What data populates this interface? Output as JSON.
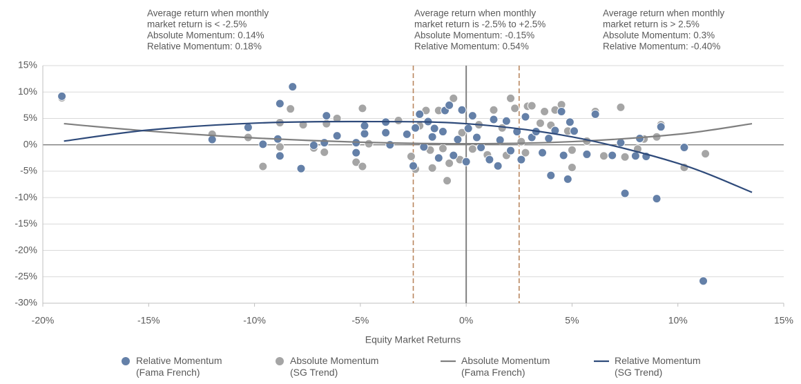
{
  "chart_data": {
    "type": "scatter",
    "xlabel": "Equity Market Returns",
    "xlim": [
      -20,
      15
    ],
    "ylim": [
      -30,
      15
    ],
    "xticks": [
      {
        "value": -20,
        "label": "-20%"
      },
      {
        "value": -15,
        "label": "-15%"
      },
      {
        "value": -10,
        "label": "-10%"
      },
      {
        "value": -5,
        "label": "-5%"
      },
      {
        "value": 0,
        "label": "0%"
      },
      {
        "value": 5,
        "label": "5%"
      },
      {
        "value": 10,
        "label": "10%"
      },
      {
        "value": 15,
        "label": "15%"
      }
    ],
    "yticks": [
      {
        "value": 15,
        "label": "15%"
      },
      {
        "value": 10,
        "label": "10%"
      },
      {
        "value": 5,
        "label": "5%"
      },
      {
        "value": 0,
        "label": "0%"
      },
      {
        "value": -5,
        "label": "-5%"
      },
      {
        "value": -10,
        "label": "-10%"
      },
      {
        "value": -15,
        "label": "-15%"
      },
      {
        "value": -20,
        "label": "-20%"
      },
      {
        "value": -25,
        "label": "-25%"
      },
      {
        "value": -30,
        "label": "-30%"
      }
    ],
    "grid": true,
    "reference_lines": [
      {
        "value": -2.5,
        "style": "dashed",
        "color": "#b8865e"
      },
      {
        "value": 0,
        "style": "solid",
        "color": "#808080"
      },
      {
        "value": 2.5,
        "style": "dashed",
        "color": "#b8865e"
      }
    ],
    "annotations": [
      [
        "Average return when monthly",
        "market return is < -2.5%",
        "Absolute Momentum: 0.14%",
        "Relative Momentum:   0.18%"
      ],
      [
        "Average return when monthly",
        "market return is -2.5% to +2.5%",
        "Absolute Momentum: -0.15%",
        "Relative Momentum:   0.54%"
      ],
      [
        "Average return when monthly",
        "market return is > 2.5%",
        "Absolute Momentum: 0.3%",
        "Relative Momentum:   -0.40%"
      ]
    ],
    "series": [
      {
        "name": "Relative Momentum (Fama French)",
        "kind": "scatter",
        "color": "#6480a8",
        "x": [
          -19.1,
          -12,
          -10.3,
          -9.6,
          -8.9,
          -8.8,
          -8.8,
          -8.2,
          -7.8,
          -7.2,
          -6.7,
          -6.6,
          -6.1,
          -5.2,
          -5.2,
          -4.8,
          -4.8,
          -3.8,
          -3.8,
          -3.6,
          -2.8,
          -2.5,
          -2.4,
          -2.2,
          -2,
          -1.8,
          -1.6,
          -1.5,
          -1.3,
          -1.1,
          -1,
          -0.8,
          -0.6,
          -0.4,
          -0.2,
          0,
          0.1,
          0.3,
          0.5,
          0.7,
          1.1,
          1.3,
          1.5,
          1.6,
          1.9,
          2.1,
          2.4,
          2.6,
          2.8,
          3.1,
          3.3,
          3.6,
          3.9,
          4,
          4.2,
          4.5,
          4.6,
          4.8,
          4.9,
          5.1,
          5.7,
          6.1,
          6.9,
          7.3,
          7.5,
          8,
          8.2,
          8.5,
          9,
          9.2,
          10.3,
          11.2
        ],
        "values": [
          9.2,
          1,
          3.3,
          0.1,
          1.1,
          -2.1,
          7.8,
          11,
          -4.5,
          -0.1,
          0.4,
          5.5,
          1.7,
          -1.5,
          0.4,
          2.1,
          3.6,
          2.3,
          4.3,
          0,
          2,
          -4,
          3.2,
          5.8,
          -0.4,
          4.4,
          1.5,
          3.1,
          -2.5,
          2.5,
          6.5,
          7.5,
          -2,
          1,
          6.6,
          -3.2,
          3.1,
          5.5,
          1.4,
          -0.5,
          -2.8,
          4.8,
          -4,
          0.9,
          4.5,
          -1.1,
          2.5,
          -2.8,
          5.3,
          1.4,
          2.5,
          -1.5,
          1.2,
          -5.8,
          2.7,
          6.3,
          -2,
          -6.5,
          4.3,
          2.6,
          -1.8,
          5.8,
          -2,
          0.4,
          -9.2,
          -2.1,
          1.2,
          -2.2,
          -10.2,
          3.4,
          -0.5,
          -25.8
        ]
      },
      {
        "name": "Absolute Momentum (SG Trend)",
        "kind": "scatter",
        "color": "#a5a5a5",
        "x": [
          -19.1,
          -12,
          -10.3,
          -9.6,
          -8.8,
          -8.8,
          -8.3,
          -7.7,
          -7.2,
          -6.7,
          -6.6,
          -6.1,
          -5.2,
          -4.9,
          -4.9,
          -4.6,
          -3.2,
          -2.6,
          -2.4,
          -2.2,
          -1.9,
          -1.7,
          -1.6,
          -1.3,
          -1.1,
          -0.6,
          -0.8,
          -0.3,
          -0.2,
          -0.9,
          0.3,
          0.6,
          1,
          1.3,
          1.7,
          1.9,
          2.1,
          2.3,
          2.6,
          2.8,
          2.9,
          3.1,
          3.5,
          3.7,
          4,
          4.2,
          4.5,
          4.8,
          5,
          5,
          5.7,
          6.1,
          6.5,
          7.3,
          7.5,
          8.1,
          8.4,
          9,
          9.2,
          10.3,
          11.3
        ],
        "values": [
          8.9,
          2,
          1.4,
          -4.1,
          4.2,
          -0.4,
          6.8,
          3.8,
          -0.6,
          -1.4,
          4,
          5,
          -3.3,
          6.9,
          -4.1,
          0.2,
          4.6,
          -2.2,
          -4.6,
          3.6,
          6.5,
          -1,
          -4.4,
          6.5,
          -0.7,
          8.8,
          -3.5,
          -2.8,
          2.3,
          -6.8,
          -0.8,
          3.8,
          -1.9,
          6.6,
          3.2,
          -2,
          8.8,
          6.9,
          0.6,
          -1.5,
          7.3,
          7.4,
          4.1,
          6.3,
          3.7,
          6.6,
          7.6,
          2.6,
          -4.3,
          -1,
          0.7,
          6.3,
          -2.1,
          7.1,
          -2.3,
          -0.8,
          1.1,
          1.5,
          3.8,
          -4.3,
          -1.7
        ]
      },
      {
        "name": "Absolute Momentum (Fama French)",
        "kind": "line",
        "color": "#7f7f7f",
        "x": [
          -19,
          -15,
          -10,
          -5,
          0,
          5,
          10,
          13.5
        ],
        "values": [
          4,
          2.6,
          1.3,
          0.5,
          0.2,
          0.6,
          2,
          4
        ]
      },
      {
        "name": "Relative Momentum (SG Trend)",
        "kind": "line",
        "color": "#2e4a7a",
        "x": [
          -19,
          -15,
          -10,
          -5,
          0,
          5,
          10,
          13.5
        ],
        "values": [
          0.7,
          2.8,
          4.1,
          4.4,
          4,
          1.5,
          -3.5,
          -9
        ]
      }
    ]
  }
}
